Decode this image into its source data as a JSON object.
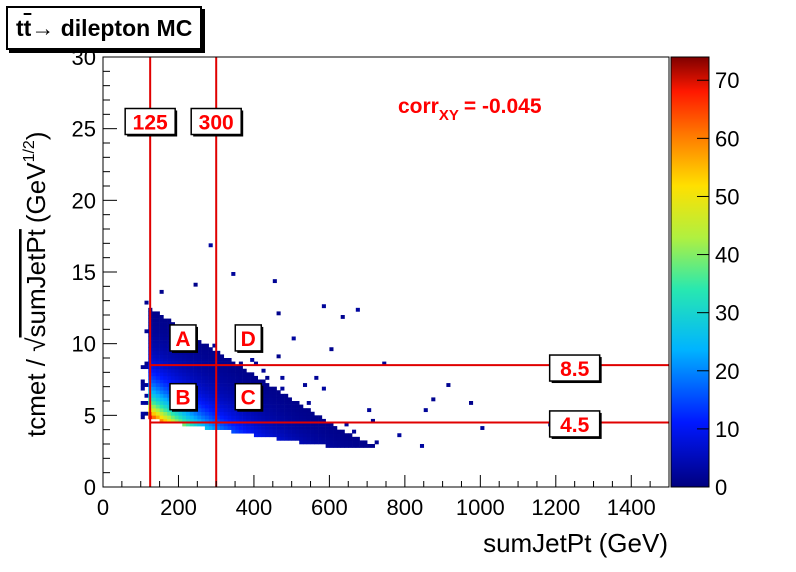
{
  "title": "t̅t̅→ dilepton MC",
  "title_parts": {
    "t1": "t",
    "t2": "t",
    "rest": "→ dilepton MC"
  },
  "chart_data": {
    "type": "heatmap",
    "xlabel": "sumJetPt (GeV)",
    "ylabel_prefix": "tcmet / √",
    "ylabel_var": "sumJetPt",
    "ylabel_unit": "(GeV",
    "ylabel_exp": "1/2",
    "ylabel_close": ")",
    "xlim": [
      0,
      1500
    ],
    "ylim": [
      0,
      30
    ],
    "xticks": [
      0,
      200,
      400,
      600,
      800,
      1000,
      1200,
      1400
    ],
    "yticks": [
      0,
      5,
      10,
      15,
      20,
      25,
      30
    ],
    "colorbar": {
      "min": 0,
      "max": 74,
      "ticks": [
        0,
        10,
        20,
        30,
        40,
        50,
        60,
        70
      ]
    },
    "correlation": {
      "label": "corr",
      "subscript": "XY",
      "value": "= -0.045"
    },
    "cut_lines": {
      "vertical": [
        125,
        300
      ],
      "horizontal": [
        8.5,
        4.5
      ]
    },
    "line_labels": [
      {
        "text": "125",
        "x": 125,
        "y": 25.5
      },
      {
        "text": "300",
        "x": 300,
        "y": 25.5
      },
      {
        "text": "8.5",
        "x": 1250,
        "y": 8.3
      },
      {
        "text": "4.5",
        "x": 1250,
        "y": 4.4
      }
    ],
    "region_labels": [
      {
        "text": "A",
        "x": 212,
        "y": 10.4
      },
      {
        "text": "B",
        "x": 212,
        "y": 6.3
      },
      {
        "text": "C",
        "x": 385,
        "y": 6.3
      },
      {
        "text": "D",
        "x": 385,
        "y": 10.4
      }
    ]
  },
  "colors": {
    "frame": "#000000",
    "cut_line": "#e00000",
    "label_text": "#ff0000"
  }
}
